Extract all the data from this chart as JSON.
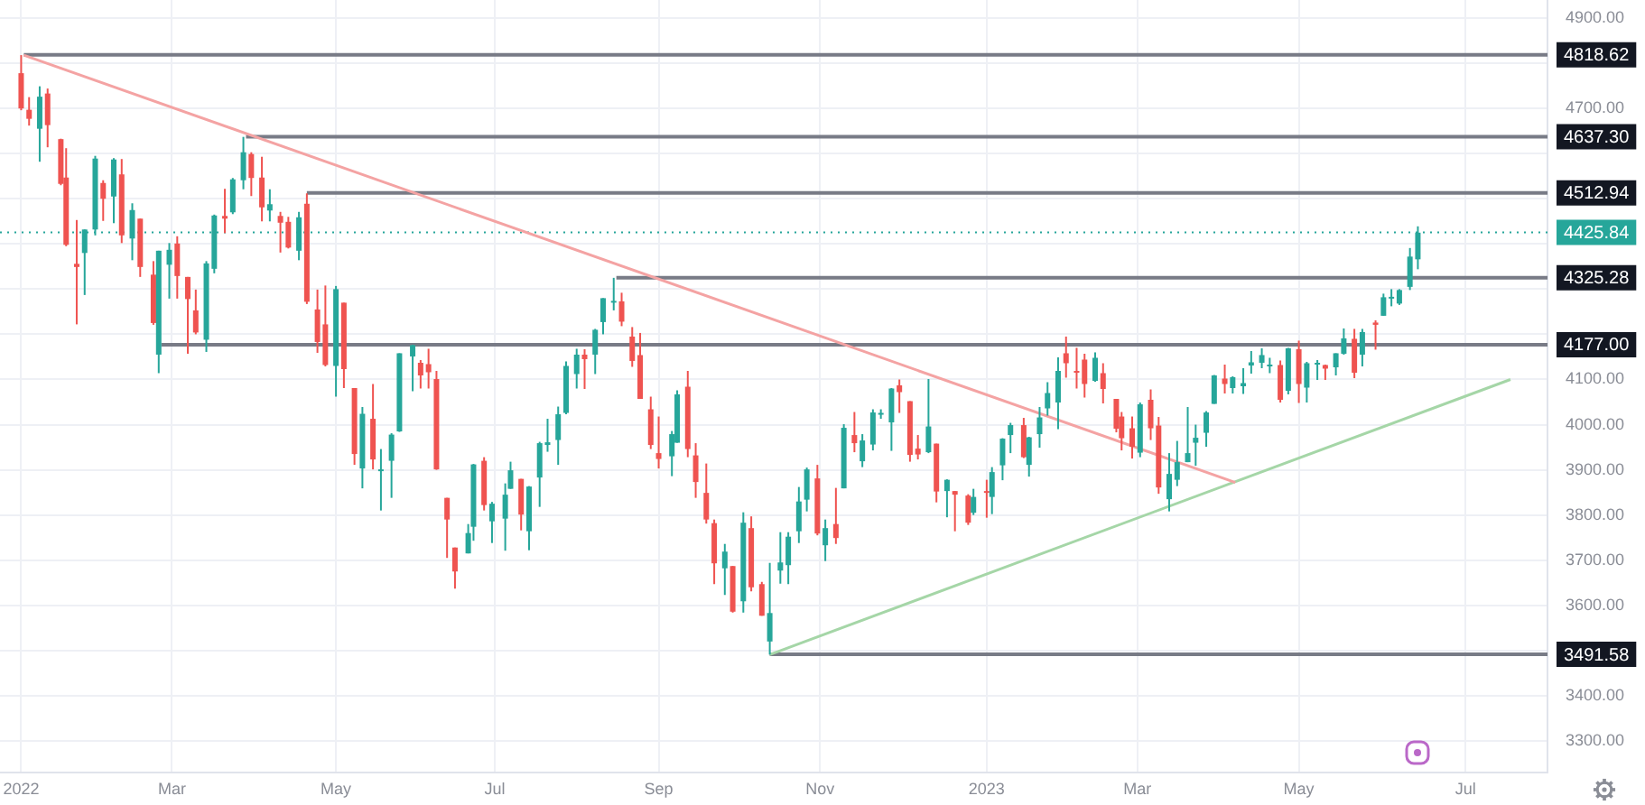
{
  "chart_data": {
    "type": "candlestick",
    "xlim": [
      "2021-12-26",
      "2023-08-03"
    ],
    "xticks": [
      {
        "value": "2022-01-03",
        "label": "2022"
      },
      {
        "value": "2022-03-01",
        "label": "Mar"
      },
      {
        "value": "2022-05-02",
        "label": "May"
      },
      {
        "value": "2022-07-01",
        "label": "Jul"
      },
      {
        "value": "2022-09-01",
        "label": "Sep"
      },
      {
        "value": "2022-11-01",
        "label": "Nov"
      },
      {
        "value": "2023-01-03",
        "label": "2023"
      },
      {
        "value": "2023-03-01",
        "label": "Mar"
      },
      {
        "value": "2023-05-01",
        "label": "May"
      },
      {
        "value": "2023-07-03",
        "label": "Jul"
      }
    ],
    "ylim": [
      3230,
      4940
    ],
    "yticks": [
      {
        "value": 3300,
        "label": "3300.00"
      },
      {
        "value": 3400,
        "label": "3400.00"
      },
      {
        "value": 3500,
        "label": null
      },
      {
        "value": 3600,
        "label": "3600.00"
      },
      {
        "value": 3700,
        "label": "3700.00"
      },
      {
        "value": 3800,
        "label": "3800.00"
      },
      {
        "value": 3900,
        "label": "3900.00"
      },
      {
        "value": 4000,
        "label": "4000.00"
      },
      {
        "value": 4100,
        "label": "4100.00"
      },
      {
        "value": 4200,
        "label": null
      },
      {
        "value": 4300,
        "label": null
      },
      {
        "value": 4400,
        "label": null
      },
      {
        "value": 4500,
        "label": null
      },
      {
        "value": 4600,
        "label": null
      },
      {
        "value": 4700,
        "label": "4700.00"
      },
      {
        "value": 4800,
        "label": null
      },
      {
        "value": 4900,
        "label": "4900.00"
      }
    ],
    "grid": true,
    "series": [
      {
        "x": [
          "2022-01-03",
          "2022-01-06",
          "2022-01-10",
          "2022-01-13",
          "2022-01-18",
          "2022-01-20",
          "2022-01-24",
          "2022-01-27",
          "2022-01-31",
          "2022-02-03",
          "2022-02-07",
          "2022-02-10",
          "2022-02-14",
          "2022-02-17",
          "2022-02-22",
          "2022-02-24",
          "2022-02-28",
          "2022-03-03",
          "2022-03-07",
          "2022-03-10",
          "2022-03-14",
          "2022-03-17",
          "2022-03-21",
          "2022-03-24",
          "2022-03-28",
          "2022-03-31",
          "2022-04-04",
          "2022-04-07",
          "2022-04-11",
          "2022-04-14",
          "2022-04-18",
          "2022-04-21",
          "2022-04-25",
          "2022-04-28",
          "2022-05-02",
          "2022-05-05",
          "2022-05-09",
          "2022-05-12",
          "2022-05-16",
          "2022-05-19",
          "2022-05-23",
          "2022-05-26",
          "2022-05-31",
          "2022-06-03",
          "2022-06-06",
          "2022-06-09",
          "2022-06-13",
          "2022-06-16",
          "2022-06-21",
          "2022-06-23",
          "2022-06-27",
          "2022-06-30",
          "2022-07-05",
          "2022-07-07",
          "2022-07-11",
          "2022-07-14",
          "2022-07-18",
          "2022-07-21",
          "2022-07-25",
          "2022-07-28",
          "2022-08-01",
          "2022-08-04",
          "2022-08-08",
          "2022-08-11",
          "2022-08-15",
          "2022-08-18",
          "2022-08-22",
          "2022-08-25",
          "2022-08-29",
          "2022-09-01",
          "2022-09-06",
          "2022-09-08",
          "2022-09-12",
          "2022-09-15",
          "2022-09-19",
          "2022-09-22",
          "2022-09-26",
          "2022-09-29",
          "2022-10-03",
          "2022-10-06",
          "2022-10-10",
          "2022-10-13",
          "2022-10-17",
          "2022-10-20",
          "2022-10-24",
          "2022-10-27",
          "2022-10-31",
          "2022-11-03",
          "2022-11-07",
          "2022-11-10",
          "2022-11-14",
          "2022-11-17",
          "2022-11-21",
          "2022-11-24",
          "2022-11-28",
          "2022-12-01",
          "2022-12-05",
          "2022-12-08",
          "2022-12-12",
          "2022-12-15",
          "2022-12-19",
          "2022-12-22",
          "2022-12-27",
          "2022-12-29",
          "2023-01-03",
          "2023-01-05",
          "2023-01-09",
          "2023-01-12",
          "2023-01-17",
          "2023-01-19",
          "2023-01-23",
          "2023-01-26",
          "2023-01-30",
          "2023-02-02",
          "2023-02-06",
          "2023-02-09",
          "2023-02-13",
          "2023-02-16",
          "2023-02-21",
          "2023-02-23",
          "2023-02-27",
          "2023-03-02",
          "2023-03-06",
          "2023-03-09",
          "2023-03-13",
          "2023-03-16",
          "2023-03-20",
          "2023-03-23",
          "2023-03-27",
          "2023-03-30",
          "2023-04-03",
          "2023-04-06",
          "2023-04-10",
          "2023-04-13",
          "2023-04-17",
          "2023-04-20",
          "2023-04-24",
          "2023-04-27",
          "2023-05-01",
          "2023-05-04",
          "2023-05-08",
          "2023-05-11",
          "2023-05-15",
          "2023-05-18",
          "2023-05-22",
          "2023-05-25",
          "2023-05-30",
          "2023-06-02",
          "2023-06-05",
          "2023-06-08",
          "2023-06-12",
          "2023-06-15"
        ],
        "ohlc": [
          [
            4778,
            4818,
            4696,
            4700
          ],
          [
            4697,
            4725,
            4662,
            4677
          ],
          [
            4655,
            4749,
            4582,
            4726
          ],
          [
            4733,
            4744,
            4614,
            4663
          ],
          [
            4632,
            4633,
            4530,
            4533
          ],
          [
            4547,
            4612,
            4395,
            4398
          ],
          [
            4356,
            4453,
            4222,
            4349
          ],
          [
            4380,
            4432,
            4287,
            4432
          ],
          [
            4432,
            4595,
            4419,
            4589
          ],
          [
            4535,
            4541,
            4451,
            4500
          ],
          [
            4505,
            4590,
            4446,
            4587
          ],
          [
            4554,
            4588,
            4402,
            4419
          ],
          [
            4412,
            4490,
            4364,
            4475
          ],
          [
            4456,
            4456,
            4327,
            4349
          ],
          [
            4332,
            4362,
            4221,
            4225
          ],
          [
            4155,
            4385,
            4114,
            4385
          ],
          [
            4354,
            4402,
            4279,
            4387
          ],
          [
            4401,
            4417,
            4279,
            4329
          ],
          [
            4327,
            4327,
            4157,
            4278
          ],
          [
            4253,
            4299,
            4200,
            4204
          ],
          [
            4188,
            4362,
            4161,
            4357
          ],
          [
            4345,
            4465,
            4335,
            4463
          ],
          [
            4462,
            4522,
            4424,
            4456
          ],
          [
            4470,
            4546,
            4466,
            4543
          ],
          [
            4541,
            4637,
            4521,
            4603
          ],
          [
            4599,
            4603,
            4506,
            4546
          ],
          [
            4547,
            4593,
            4450,
            4481
          ],
          [
            4474,
            4521,
            4450,
            4488
          ],
          [
            4462,
            4471,
            4381,
            4447
          ],
          [
            4449,
            4460,
            4390,
            4392
          ],
          [
            4385,
            4471,
            4364,
            4459
          ],
          [
            4489,
            4512,
            4267,
            4272
          ],
          [
            4255,
            4299,
            4159,
            4183
          ],
          [
            4222,
            4308,
            4129,
            4132
          ],
          [
            4130,
            4307,
            4062,
            4300
          ],
          [
            4270,
            4270,
            4081,
            4123
          ],
          [
            4081,
            4081,
            3911,
            3935
          ],
          [
            3903,
            4039,
            3859,
            4024
          ],
          [
            4013,
            4090,
            3901,
            3923
          ],
          [
            3899,
            3946,
            3810,
            3901
          ],
          [
            3920,
            3981,
            3838,
            3978
          ],
          [
            3985,
            4158,
            3984,
            4158
          ],
          [
            4151,
            4177,
            4074,
            4176
          ],
          [
            4137,
            4143,
            4080,
            4109
          ],
          [
            4134,
            4168,
            4080,
            4116
          ],
          [
            4101,
            4119,
            3900,
            3901
          ],
          [
            3838,
            3838,
            3705,
            3790
          ],
          [
            3728,
            3728,
            3637,
            3675
          ],
          [
            3715,
            3780,
            3715,
            3760
          ],
          [
            3774,
            3913,
            3743,
            3912
          ],
          [
            3920,
            3928,
            3810,
            3822
          ],
          [
            3786,
            3829,
            3738,
            3825
          ],
          [
            3792,
            3870,
            3721,
            3845
          ],
          [
            3858,
            3918,
            3858,
            3899
          ],
          [
            3880,
            3880,
            3766,
            3801
          ],
          [
            3764,
            3864,
            3722,
            3863
          ],
          [
            3883,
            3962,
            3818,
            3959
          ],
          [
            3955,
            4013,
            3940,
            3961
          ],
          [
            3966,
            4040,
            3911,
            4023
          ],
          [
            4026,
            4140,
            4023,
            4130
          ],
          [
            4112,
            4168,
            4080,
            4155
          ],
          [
            4155,
            4167,
            4079,
            4145
          ],
          [
            4155,
            4212,
            4112,
            4210
          ],
          [
            4227,
            4280,
            4200,
            4280
          ],
          [
            4270,
            4325,
            4253,
            4274
          ],
          [
            4273,
            4292,
            4218,
            4228
          ],
          [
            4195,
            4216,
            4128,
            4141
          ],
          [
            4154,
            4203,
            4057,
            4057
          ],
          [
            4034,
            4062,
            3946,
            3955
          ],
          [
            3937,
            4018,
            3903,
            3924
          ],
          [
            3930,
            3986,
            3886,
            3979
          ],
          [
            3960,
            4076,
            3960,
            4067
          ],
          [
            4084,
            4119,
            3928,
            3946
          ],
          [
            3932,
            3959,
            3838,
            3873
          ],
          [
            3849,
            3914,
            3781,
            3790
          ],
          [
            3782,
            3790,
            3647,
            3693
          ],
          [
            3682,
            3736,
            3623,
            3719
          ],
          [
            3687,
            3687,
            3584,
            3586
          ],
          [
            3609,
            3806,
            3584,
            3783
          ],
          [
            3771,
            3797,
            3631,
            3640
          ],
          [
            3647,
            3652,
            3577,
            3577
          ],
          [
            3520,
            3694,
            3491,
            3583
          ],
          [
            3677,
            3762,
            3648,
            3695
          ],
          [
            3689,
            3762,
            3647,
            3752
          ],
          [
            3764,
            3862,
            3738,
            3830
          ],
          [
            3834,
            3905,
            3808,
            3901
          ],
          [
            3881,
            3911,
            3755,
            3759
          ],
          [
            3733,
            3790,
            3698,
            3771
          ],
          [
            3780,
            3860,
            3736,
            3749
          ],
          [
            3859,
            4001,
            3859,
            3993
          ],
          [
            3977,
            4028,
            3939,
            3959
          ],
          [
            3919,
            3979,
            3906,
            3965
          ],
          [
            3956,
            4034,
            3943,
            4027
          ],
          [
            4023,
            4034,
            4013,
            4026
          ],
          [
            4005,
            4081,
            3942,
            4080
          ],
          [
            4087,
            4100,
            4026,
            4072
          ],
          [
            4052,
            4052,
            3918,
            3933
          ],
          [
            3947,
            3977,
            3923,
            3934
          ],
          [
            3939,
            4101,
            3937,
            3996
          ],
          [
            3958,
            3958,
            3828,
            3852
          ],
          [
            3853,
            3879,
            3795,
            3878
          ],
          [
            3853,
            3853,
            3764,
            3845
          ],
          [
            3843,
            3846,
            3778,
            3783
          ],
          [
            3805,
            3858,
            3800,
            3840
          ],
          [
            3853,
            3878,
            3794,
            3852
          ],
          [
            3840,
            3906,
            3802,
            3895
          ],
          [
            3910,
            3970,
            3877,
            3969
          ],
          [
            3977,
            4004,
            3937,
            3999
          ],
          [
            3999,
            4015,
            3926,
            3928
          ],
          [
            3911,
            3973,
            3885,
            3972
          ],
          [
            3979,
            4039,
            3949,
            4016
          ],
          [
            4036,
            4094,
            4020,
            4070
          ],
          [
            4049,
            4149,
            3990,
            4119
          ],
          [
            4158,
            4195,
            4104,
            4136
          ],
          [
            4119,
            4170,
            4080,
            4118
          ],
          [
            4144,
            4157,
            4060,
            4090
          ],
          [
            4097,
            4160,
            4095,
            4148
          ],
          [
            4114,
            4136,
            4047,
            4079
          ],
          [
            4057,
            4057,
            3983,
            3991
          ],
          [
            4018,
            4028,
            3943,
            3970
          ],
          [
            3992,
            4018,
            3925,
            3951
          ],
          [
            3938,
            4049,
            3928,
            4045
          ],
          [
            4055,
            4078,
            3966,
            3992
          ],
          [
            3998,
            4017,
            3847,
            3861
          ],
          [
            3835,
            3937,
            3808,
            3891
          ],
          [
            3878,
            3964,
            3864,
            3917
          ],
          [
            3917,
            4039,
            3917,
            3937
          ],
          [
            3960,
            4000,
            3909,
            3971
          ],
          [
            3982,
            4030,
            3951,
            4027
          ],
          [
            4046,
            4110,
            4046,
            4109
          ],
          [
            4102,
            4133,
            4069,
            4090
          ],
          [
            4081,
            4107,
            4069,
            4105
          ],
          [
            4085,
            4125,
            4068,
            4092
          ],
          [
            4131,
            4163,
            4113,
            4138
          ],
          [
            4137,
            4169,
            4125,
            4154
          ],
          [
            4130,
            4148,
            4114,
            4133
          ],
          [
            4132,
            4142,
            4049,
            4055
          ],
          [
            4075,
            4170,
            4067,
            4169
          ],
          [
            4167,
            4186,
            4048,
            4090
          ],
          [
            4082,
            4139,
            4049,
            4136
          ],
          [
            4136,
            4143,
            4099,
            4137
          ],
          [
            4132,
            4133,
            4099,
            4124
          ],
          [
            4127,
            4158,
            4109,
            4158
          ],
          [
            4157,
            4213,
            4155,
            4191
          ],
          [
            4190,
            4212,
            4103,
            4115
          ],
          [
            4155,
            4212,
            4129,
            4205
          ],
          [
            4226,
            4231,
            4166,
            4221
          ],
          [
            4241,
            4290,
            4241,
            4282
          ],
          [
            4282,
            4300,
            4262,
            4283
          ],
          [
            4268,
            4300,
            4265,
            4298
          ],
          [
            4305,
            4391,
            4298,
            4372
          ],
          [
            4366,
            4439,
            4344,
            4425
          ]
        ],
        "colors": [
          "#ef5350",
          "#ef5350",
          "#26a69a",
          "#ef5350",
          "#ef5350",
          "#ef5350",
          "#ef5350",
          "#26a69a",
          "#26a69a",
          "#ef5350",
          "#26a69a",
          "#ef5350",
          "#26a69a",
          "#ef5350",
          "#ef5350",
          "#26a69a",
          "#26a69a",
          "#ef5350",
          "#ef5350",
          "#ef5350",
          "#26a69a",
          "#26a69a",
          "#ef5350",
          "#26a69a",
          "#26a69a",
          "#ef5350",
          "#ef5350",
          "#26a69a",
          "#ef5350",
          "#ef5350",
          "#26a69a",
          "#ef5350",
          "#ef5350",
          "#ef5350",
          "#26a69a",
          "#ef5350",
          "#ef5350",
          "#26a69a",
          "#ef5350",
          "#26a69a",
          "#26a69a",
          "#26a69a",
          "#26a69a",
          "#ef5350",
          "#ef5350",
          "#ef5350",
          "#ef5350",
          "#ef5350",
          "#26a69a",
          "#26a69a",
          "#ef5350",
          "#26a69a",
          "#26a69a",
          "#26a69a",
          "#ef5350",
          "#26a69a",
          "#26a69a",
          "#26a69a",
          "#26a69a",
          "#26a69a",
          "#26a69a",
          "#ef5350",
          "#26a69a",
          "#26a69a",
          "#26a69a",
          "#ef5350",
          "#ef5350",
          "#ef5350",
          "#ef5350",
          "#ef5350",
          "#26a69a",
          "#26a69a",
          "#ef5350",
          "#ef5350",
          "#ef5350",
          "#ef5350",
          "#26a69a",
          "#ef5350",
          "#26a69a",
          "#ef5350",
          "#ef5350",
          "#26a69a",
          "#26a69a",
          "#26a69a",
          "#26a69a",
          "#26a69a",
          "#ef5350",
          "#26a69a",
          "#ef5350",
          "#26a69a",
          "#ef5350",
          "#26a69a",
          "#26a69a",
          "#26a69a",
          "#26a69a",
          "#ef5350",
          "#ef5350",
          "#ef5350",
          "#26a69a",
          "#ef5350",
          "#26a69a",
          "#ef5350",
          "#ef5350",
          "#26a69a",
          "#ef5350",
          "#26a69a",
          "#26a69a",
          "#26a69a",
          "#ef5350",
          "#26a69a",
          "#26a69a",
          "#26a69a",
          "#26a69a",
          "#ef5350",
          "#ef5350",
          "#ef5350",
          "#26a69a",
          "#ef5350",
          "#ef5350",
          "#ef5350",
          "#ef5350",
          "#26a69a",
          "#ef5350",
          "#ef5350",
          "#26a69a",
          "#26a69a",
          "#26a69a",
          "#26a69a",
          "#26a69a",
          "#26a69a",
          "#ef5350",
          "#26a69a",
          "#26a69a",
          "#26a69a",
          "#26a69a",
          "#26a69a",
          "#ef5350",
          "#26a69a",
          "#ef5350",
          "#26a69a",
          "#26a69a",
          "#ef5350",
          "#26a69a",
          "#26a69a",
          "#ef5350",
          "#26a69a",
          "#ef5350",
          "#26a69a",
          "#26a69a",
          "#26a69a",
          "#26a69a",
          "#26a69a"
        ]
      },
      {
        "type": "line",
        "x": [
          "2022-01-04",
          "2023-04-07"
        ],
        "values": [
          4818,
          3872
        ],
        "color": "#f4a3a3"
      },
      {
        "type": "line",
        "x": [
          "2022-10-13",
          "2023-07-20"
        ],
        "values": [
          3491,
          4100
        ],
        "color": "#a5d6a7"
      },
      {
        "type": "line",
        "x": [
          "2022-01-04",
          "2023-08-03"
        ],
        "values": [
          4818.62,
          4818.62
        ],
        "color": "#787b86",
        "value_labels": [
          null,
          "4818.62"
        ]
      },
      {
        "type": "line",
        "x": [
          "2022-03-29",
          "2023-08-03"
        ],
        "values": [
          4637.3,
          4637.3
        ],
        "color": "#787b86",
        "value_labels": [
          null,
          "4637.30"
        ]
      },
      {
        "type": "line",
        "x": [
          "2022-04-21",
          "2023-08-03"
        ],
        "values": [
          4512.94,
          4512.94
        ],
        "color": "#787b86",
        "value_labels": [
          null,
          "4512.94"
        ]
      },
      {
        "type": "line",
        "x": [
          "2022-08-16",
          "2023-08-03"
        ],
        "values": [
          4325.28,
          4325.28
        ],
        "color": "#787b86",
        "value_labels": [
          null,
          "4325.28"
        ]
      },
      {
        "type": "line",
        "x": [
          "2022-02-25",
          "2023-08-03"
        ],
        "values": [
          4177,
          4177
        ],
        "color": "#787b86",
        "value_labels": [
          null,
          "4177.00"
        ]
      },
      {
        "type": "line",
        "x": [
          "2022-10-13",
          "2023-08-03"
        ],
        "values": [
          3491.58,
          3491.58
        ],
        "color": "#787b86",
        "value_labels": [
          null,
          "3491.58"
        ]
      }
    ],
    "ref_lines": [
      {
        "axis": "y",
        "value": 4425.84,
        "label": "4425.84",
        "color": "#26a69a",
        "line_style": "dotted"
      }
    ]
  }
}
